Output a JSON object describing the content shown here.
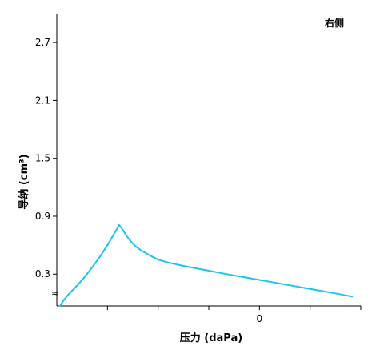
{
  "chart_data": {
    "type": "line",
    "annotation": "右侧",
    "xlabel": "压力 (daPa)",
    "ylabel": "导纳 (cm³)",
    "xlim": [
      -400,
      200
    ],
    "ylim": [
      -0.03,
      3.0
    ],
    "x_ticks": [
      -300,
      -200,
      -100,
      0,
      100,
      200
    ],
    "x_tick_labels": [
      {
        "x": 0,
        "text": "0"
      }
    ],
    "y_ticks": [
      0.3,
      0.9,
      1.5,
      2.1,
      2.7
    ],
    "y_tick_labels": [
      "0.3",
      "0.9",
      "1.5",
      "2.1",
      "2.7"
    ],
    "axis_break": "≈",
    "colors": {
      "line": "#1cc4f0",
      "axis": "#000000"
    },
    "series": [
      {
        "x": [
          -394,
          -385,
          -375,
          -360,
          -345,
          -330,
          -315,
          -300,
          -290,
          -282,
          -277,
          -270,
          -265,
          -260,
          -254,
          -245,
          -235,
          -225,
          -215,
          -200,
          -180,
          -150,
          -120,
          -90,
          -60,
          -30,
          0,
          30,
          60,
          90,
          120,
          150,
          183
        ],
        "values": [
          -0.03,
          0.04,
          0.1,
          0.18,
          0.27,
          0.37,
          0.48,
          0.6,
          0.69,
          0.76,
          0.81,
          0.76,
          0.72,
          0.68,
          0.64,
          0.59,
          0.55,
          0.52,
          0.49,
          0.45,
          0.42,
          0.385,
          0.355,
          0.325,
          0.295,
          0.268,
          0.24,
          0.212,
          0.184,
          0.156,
          0.128,
          0.1,
          0.067
        ]
      }
    ]
  }
}
